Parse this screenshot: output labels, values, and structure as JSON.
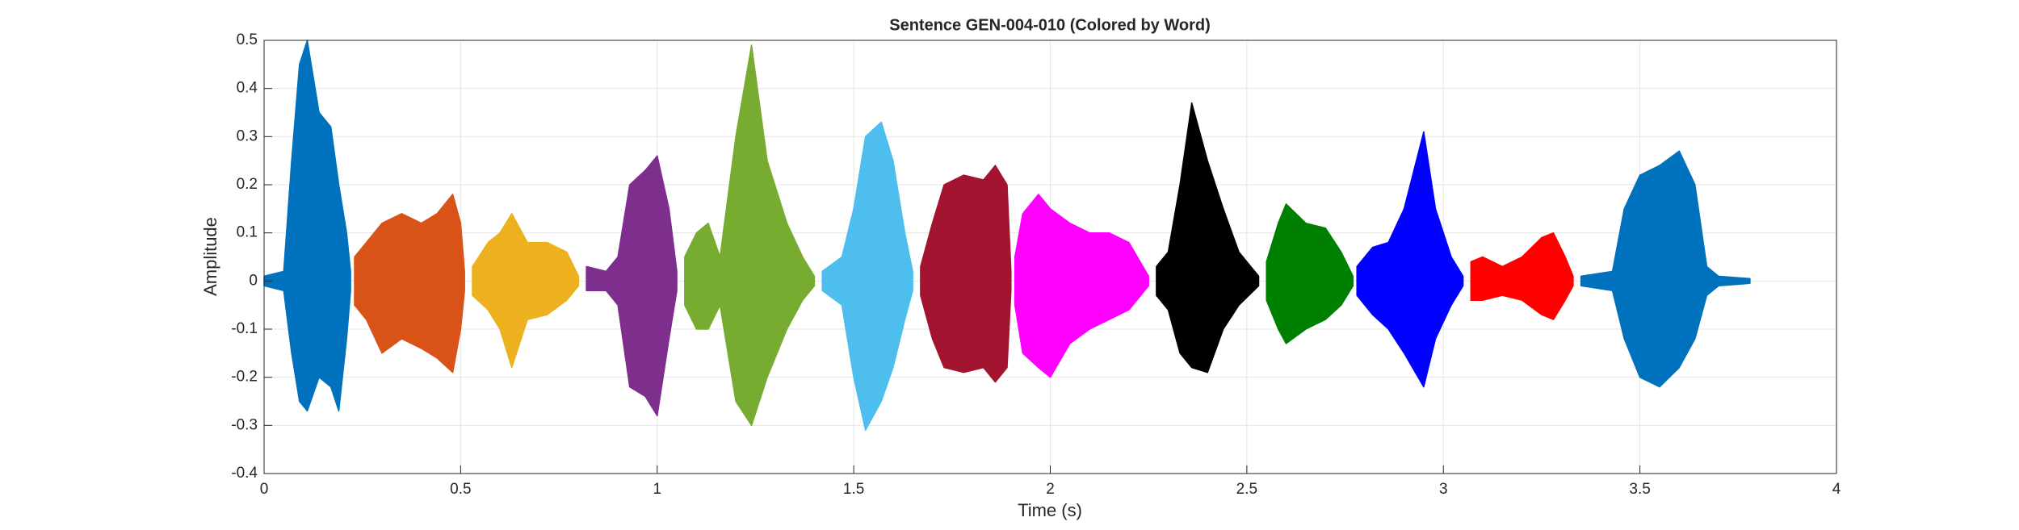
{
  "chart_data": {
    "type": "waveform",
    "title": "Sentence GEN-004-010 (Colored by Word)",
    "xlabel": "Time (s)",
    "ylabel": "Amplitude",
    "xlim": [
      0,
      4
    ],
    "xticks": [
      0,
      0.5,
      1,
      1.5,
      2,
      2.5,
      3,
      3.5,
      4
    ],
    "ylim": [
      -0.4,
      0.5
    ],
    "yticks": [
      -0.4,
      -0.3,
      -0.2,
      -0.1,
      0,
      0.1,
      0.2,
      0.3,
      0.4,
      0.5
    ],
    "grid": true,
    "series": [
      {
        "color": "#0072BD",
        "x": [
          0,
          0.05,
          0.07,
          0.09,
          0.11,
          0.14,
          0.17,
          0.19,
          0.21,
          0.22
        ],
        "max": [
          0.01,
          0.02,
          0.25,
          0.45,
          0.5,
          0.35,
          0.32,
          0.2,
          0.1,
          0.02
        ],
        "min": [
          -0.01,
          -0.02,
          -0.15,
          -0.25,
          -0.27,
          -0.2,
          -0.22,
          -0.27,
          -0.12,
          -0.02
        ]
      },
      {
        "color": "#D95319",
        "x": [
          0.23,
          0.26,
          0.3,
          0.35,
          0.4,
          0.44,
          0.48,
          0.5,
          0.51
        ],
        "max": [
          0.05,
          0.08,
          0.12,
          0.14,
          0.12,
          0.14,
          0.18,
          0.12,
          0.02
        ],
        "min": [
          -0.05,
          -0.08,
          -0.15,
          -0.12,
          -0.14,
          -0.16,
          -0.19,
          -0.1,
          -0.02
        ]
      },
      {
        "color": "#EDB120",
        "x": [
          0.53,
          0.57,
          0.6,
          0.63,
          0.67,
          0.72,
          0.77,
          0.8
        ],
        "max": [
          0.03,
          0.08,
          0.1,
          0.14,
          0.08,
          0.08,
          0.06,
          0.01
        ],
        "min": [
          -0.03,
          -0.06,
          -0.1,
          -0.18,
          -0.08,
          -0.07,
          -0.04,
          -0.01
        ]
      },
      {
        "color": "#7E2F8E",
        "x": [
          0.82,
          0.87,
          0.9,
          0.93,
          0.97,
          1.0,
          1.03,
          1.05
        ],
        "max": [
          0.03,
          0.02,
          0.05,
          0.2,
          0.23,
          0.26,
          0.15,
          0.02
        ],
        "min": [
          -0.02,
          -0.02,
          -0.05,
          -0.22,
          -0.24,
          -0.28,
          -0.12,
          -0.02
        ]
      },
      {
        "color": "#77AC30",
        "x": [
          1.07,
          1.1,
          1.13,
          1.16,
          1.2,
          1.24,
          1.28,
          1.33,
          1.37,
          1.4
        ],
        "max": [
          0.05,
          0.1,
          0.12,
          0.05,
          0.3,
          0.49,
          0.25,
          0.12,
          0.05,
          0.01
        ],
        "min": [
          -0.05,
          -0.1,
          -0.1,
          -0.05,
          -0.25,
          -0.3,
          -0.2,
          -0.1,
          -0.04,
          -0.01
        ]
      },
      {
        "color": "#4DBEEE",
        "x": [
          1.42,
          1.47,
          1.5,
          1.53,
          1.57,
          1.6,
          1.63,
          1.65
        ],
        "max": [
          0.02,
          0.05,
          0.15,
          0.3,
          0.33,
          0.25,
          0.1,
          0.02
        ],
        "min": [
          -0.02,
          -0.05,
          -0.2,
          -0.31,
          -0.25,
          -0.18,
          -0.08,
          -0.02
        ]
      },
      {
        "color": "#A2142F",
        "x": [
          1.67,
          1.7,
          1.73,
          1.78,
          1.83,
          1.86,
          1.89,
          1.9
        ],
        "max": [
          0.03,
          0.12,
          0.2,
          0.22,
          0.21,
          0.24,
          0.2,
          0.02
        ],
        "min": [
          -0.03,
          -0.12,
          -0.18,
          -0.19,
          -0.18,
          -0.21,
          -0.18,
          -0.02
        ]
      },
      {
        "color": "#FF00FF",
        "x": [
          1.91,
          1.93,
          1.97,
          2.0,
          2.05,
          2.1,
          2.15,
          2.2,
          2.25
        ],
        "max": [
          0.05,
          0.14,
          0.18,
          0.15,
          0.12,
          0.1,
          0.1,
          0.08,
          0.01
        ],
        "min": [
          -0.05,
          -0.15,
          -0.18,
          -0.2,
          -0.13,
          -0.1,
          -0.08,
          -0.06,
          -0.01
        ]
      },
      {
        "color": "#000000",
        "x": [
          2.27,
          2.3,
          2.33,
          2.36,
          2.4,
          2.44,
          2.48,
          2.53
        ],
        "max": [
          0.03,
          0.06,
          0.2,
          0.37,
          0.25,
          0.15,
          0.06,
          0.01
        ],
        "min": [
          -0.03,
          -0.06,
          -0.15,
          -0.18,
          -0.19,
          -0.1,
          -0.05,
          -0.01
        ]
      },
      {
        "color": "#008000",
        "x": [
          2.55,
          2.58,
          2.6,
          2.65,
          2.7,
          2.74,
          2.77
        ],
        "max": [
          0.04,
          0.12,
          0.16,
          0.12,
          0.11,
          0.06,
          0.01
        ],
        "min": [
          -0.04,
          -0.1,
          -0.13,
          -0.1,
          -0.08,
          -0.05,
          -0.01
        ]
      },
      {
        "color": "#0000FF",
        "x": [
          2.78,
          2.82,
          2.86,
          2.9,
          2.95,
          2.98,
          3.02,
          3.05
        ],
        "max": [
          0.03,
          0.07,
          0.08,
          0.15,
          0.31,
          0.15,
          0.05,
          0.01
        ],
        "min": [
          -0.03,
          -0.07,
          -0.1,
          -0.15,
          -0.22,
          -0.12,
          -0.05,
          -0.01
        ]
      },
      {
        "color": "#FF0000",
        "x": [
          3.07,
          3.1,
          3.15,
          3.2,
          3.25,
          3.28,
          3.31,
          3.33
        ],
        "max": [
          0.04,
          0.05,
          0.03,
          0.05,
          0.09,
          0.1,
          0.05,
          0.01
        ],
        "min": [
          -0.04,
          -0.04,
          -0.03,
          -0.04,
          -0.07,
          -0.08,
          -0.04,
          -0.01
        ]
      },
      {
        "color": "#0072BD",
        "x": [
          3.35,
          3.43,
          3.46,
          3.5,
          3.55,
          3.6,
          3.64,
          3.67,
          3.7,
          3.78
        ],
        "max": [
          0.01,
          0.02,
          0.15,
          0.22,
          0.24,
          0.27,
          0.2,
          0.03,
          0.01,
          0.005
        ],
        "min": [
          -0.01,
          -0.02,
          -0.12,
          -0.2,
          -0.22,
          -0.18,
          -0.12,
          -0.03,
          -0.01,
          -0.005
        ]
      }
    ]
  }
}
